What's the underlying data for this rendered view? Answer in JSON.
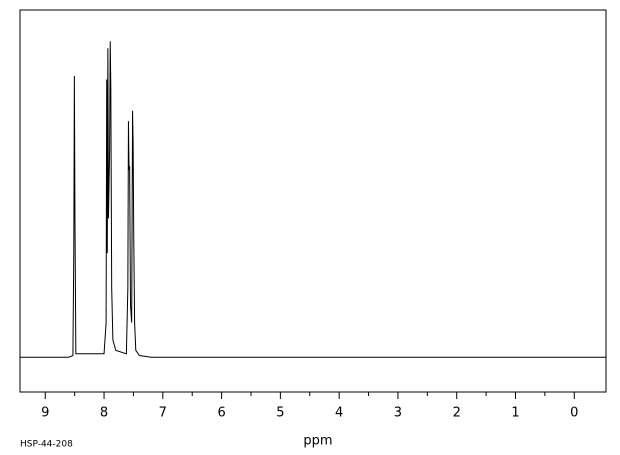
{
  "chart_data": {
    "type": "line",
    "xlabel": "ppm",
    "footnote": "HSP-44-208",
    "xlim": [
      9.43,
      -0.54
    ],
    "xticks": [
      9,
      8,
      7,
      6,
      5,
      4,
      3,
      2,
      1,
      0
    ],
    "ylim": [
      -10,
      100
    ],
    "color": "#000000",
    "x": [
      9.43,
      8.6,
      8.53,
      8.515,
      8.505,
      8.495,
      8.48,
      8.0,
      7.965,
      7.955,
      7.945,
      7.935,
      7.925,
      7.905,
      7.895,
      7.885,
      7.87,
      7.85,
      7.8,
      7.62,
      7.595,
      7.585,
      7.575,
      7.565,
      7.55,
      7.53,
      7.515,
      7.505,
      7.495,
      7.48,
      7.46,
      7.4,
      7.2,
      -0.54
    ],
    "values": [
      0,
      0,
      0.5,
      30,
      81,
      40,
      1,
      1,
      10,
      80,
      30,
      89,
      40,
      60,
      91,
      78,
      20,
      5,
      2,
      1,
      20,
      68,
      54,
      55,
      15,
      10,
      71,
      61,
      35,
      10,
      2,
      0.5,
      0,
      0
    ]
  }
}
